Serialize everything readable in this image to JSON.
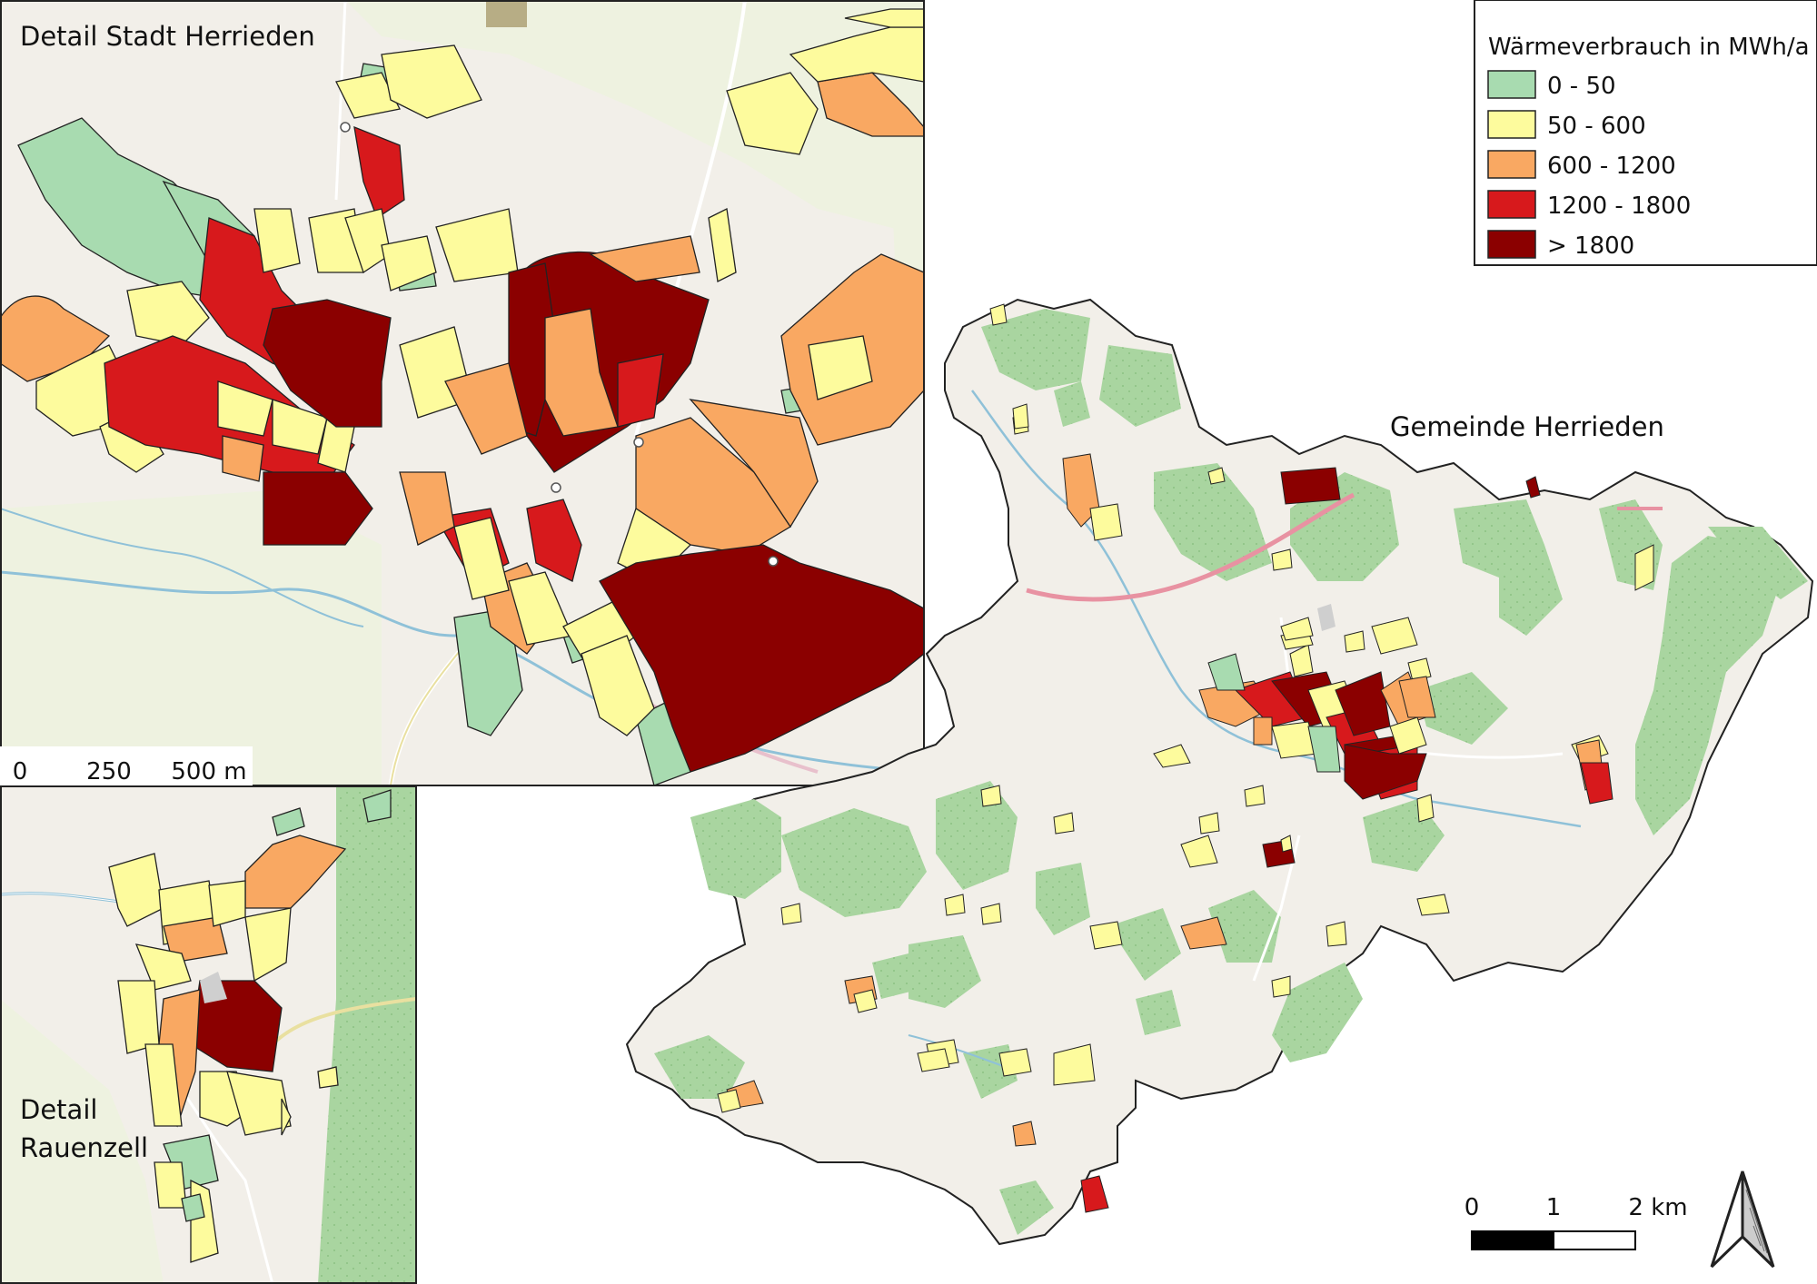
{
  "titles": {
    "detail_town": "Detail Stadt Herrieden",
    "detail_village_line1": "Detail",
    "detail_village_line2": "Rauenzell",
    "municipality": "Gemeinde Herrieden"
  },
  "legend": {
    "title": "Wärmeverbrauch in MWh/a",
    "classes": [
      {
        "label": "0 - 50",
        "color": "#a8dbb0"
      },
      {
        "label": "50 - 600",
        "color": "#fdfb9d"
      },
      {
        "label": "600 - 1200",
        "color": "#f9a862"
      },
      {
        "label": "1200 - 1800",
        "color": "#d7191c"
      },
      {
        "label": "> 1800",
        "color": "#8b0000"
      }
    ]
  },
  "scalebar_detail": {
    "ticks": [
      "0",
      "250",
      "500 m"
    ]
  },
  "scalebar_overview": {
    "ticks": [
      "0",
      "1",
      "2 km"
    ]
  },
  "north_arrow": {
    "icon": "north-arrow-icon"
  },
  "basemap_colors": {
    "land": "#f2efe9",
    "forest": "#a5d39b",
    "water": "#8fc1d8",
    "road": "#ffffff",
    "motorway": "#e892a2"
  }
}
